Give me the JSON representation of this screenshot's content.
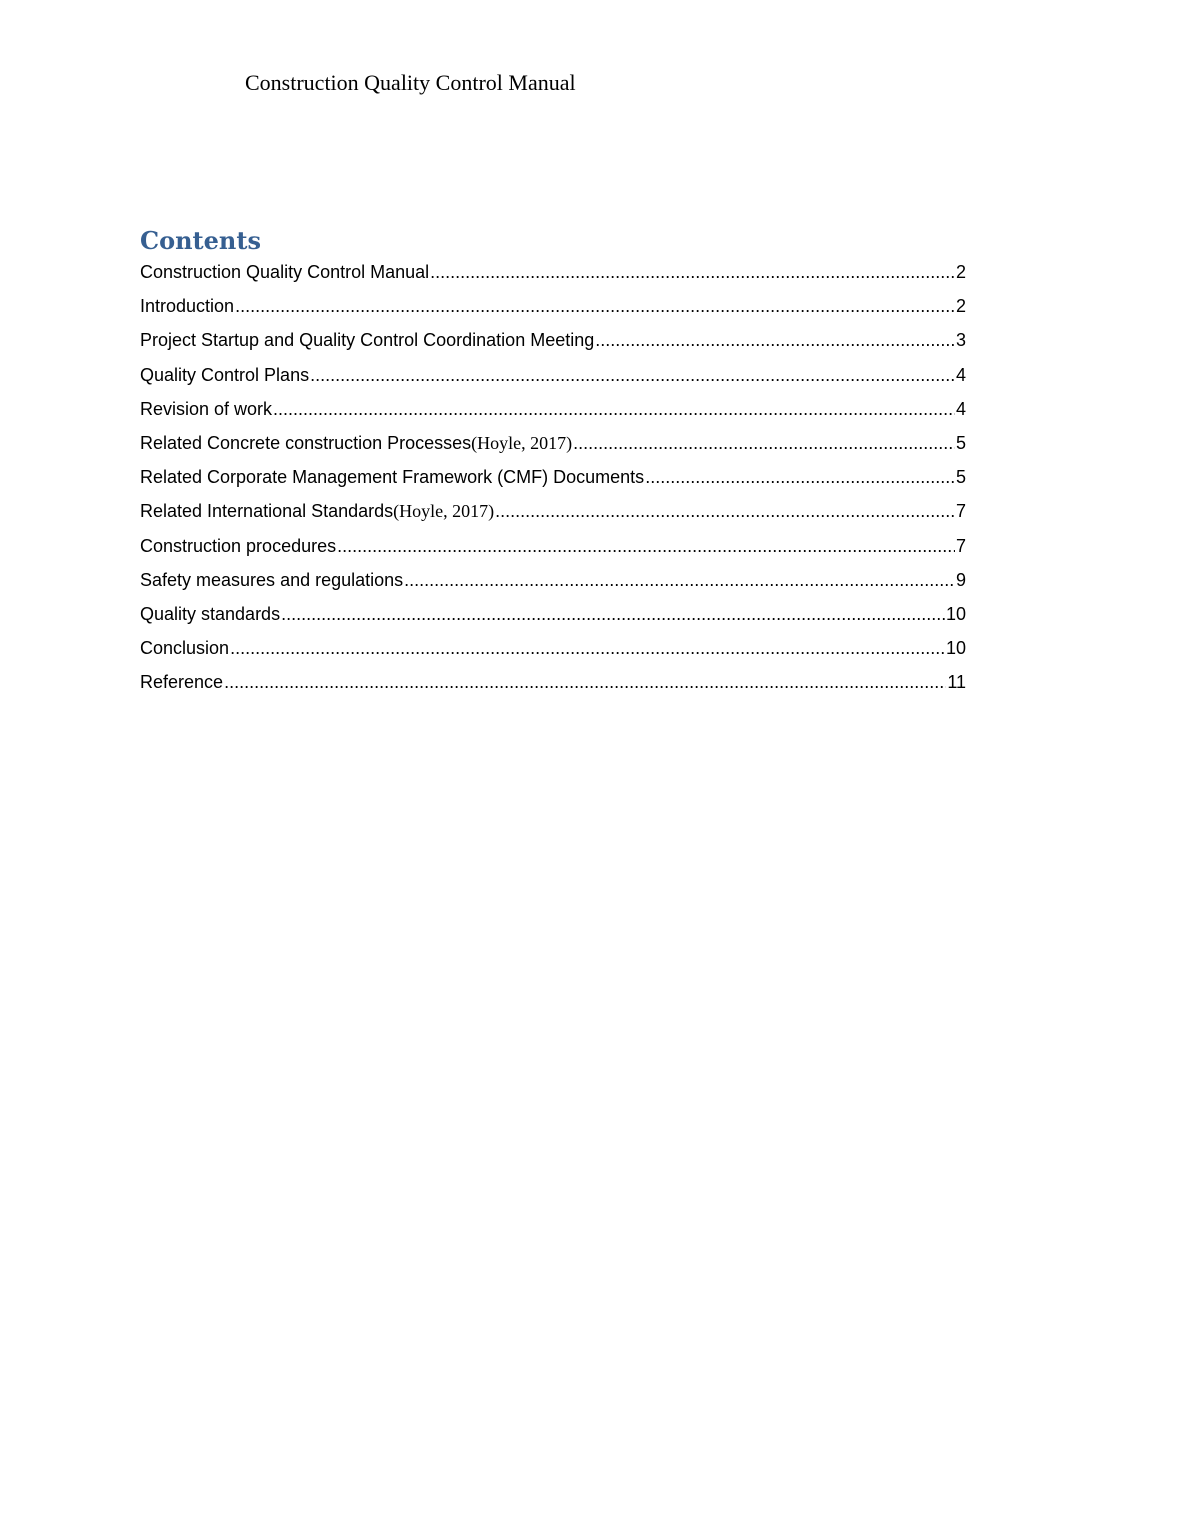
{
  "header": {
    "title": "Construction Quality Control Manual"
  },
  "toc": {
    "title": "Contents",
    "entries": [
      {
        "text": "Construction Quality Control Manual",
        "cite": "",
        "page": "2"
      },
      {
        "text": "Introduction",
        "cite": "",
        "page": "2"
      },
      {
        "text": "Project Startup and Quality Control Coordination Meeting",
        "cite": "",
        "page": "3"
      },
      {
        "text": "Quality Control Plans",
        "cite": "",
        "page": "4"
      },
      {
        "text": "Revision of work",
        "cite": "",
        "page": "4"
      },
      {
        "text": "Related Concrete construction Processes ",
        "cite": "(Hoyle, 2017)",
        "page": "5"
      },
      {
        "text": "Related Corporate Management Framework (CMF) Documents",
        "cite": "",
        "page": "5"
      },
      {
        "text": "Related International Standards ",
        "cite": "(Hoyle, 2017)",
        "page": "7"
      },
      {
        "text": "Construction procedures",
        "cite": "",
        "page": "7"
      },
      {
        "text": "Safety measures and regulations",
        "cite": "",
        "page": "9"
      },
      {
        "text": "Quality standards",
        "cite": "",
        "page": "10"
      },
      {
        "text": "Conclusion",
        "cite": "",
        "page": "10"
      },
      {
        "text": "Reference",
        "cite": "",
        "page": "11"
      }
    ]
  }
}
